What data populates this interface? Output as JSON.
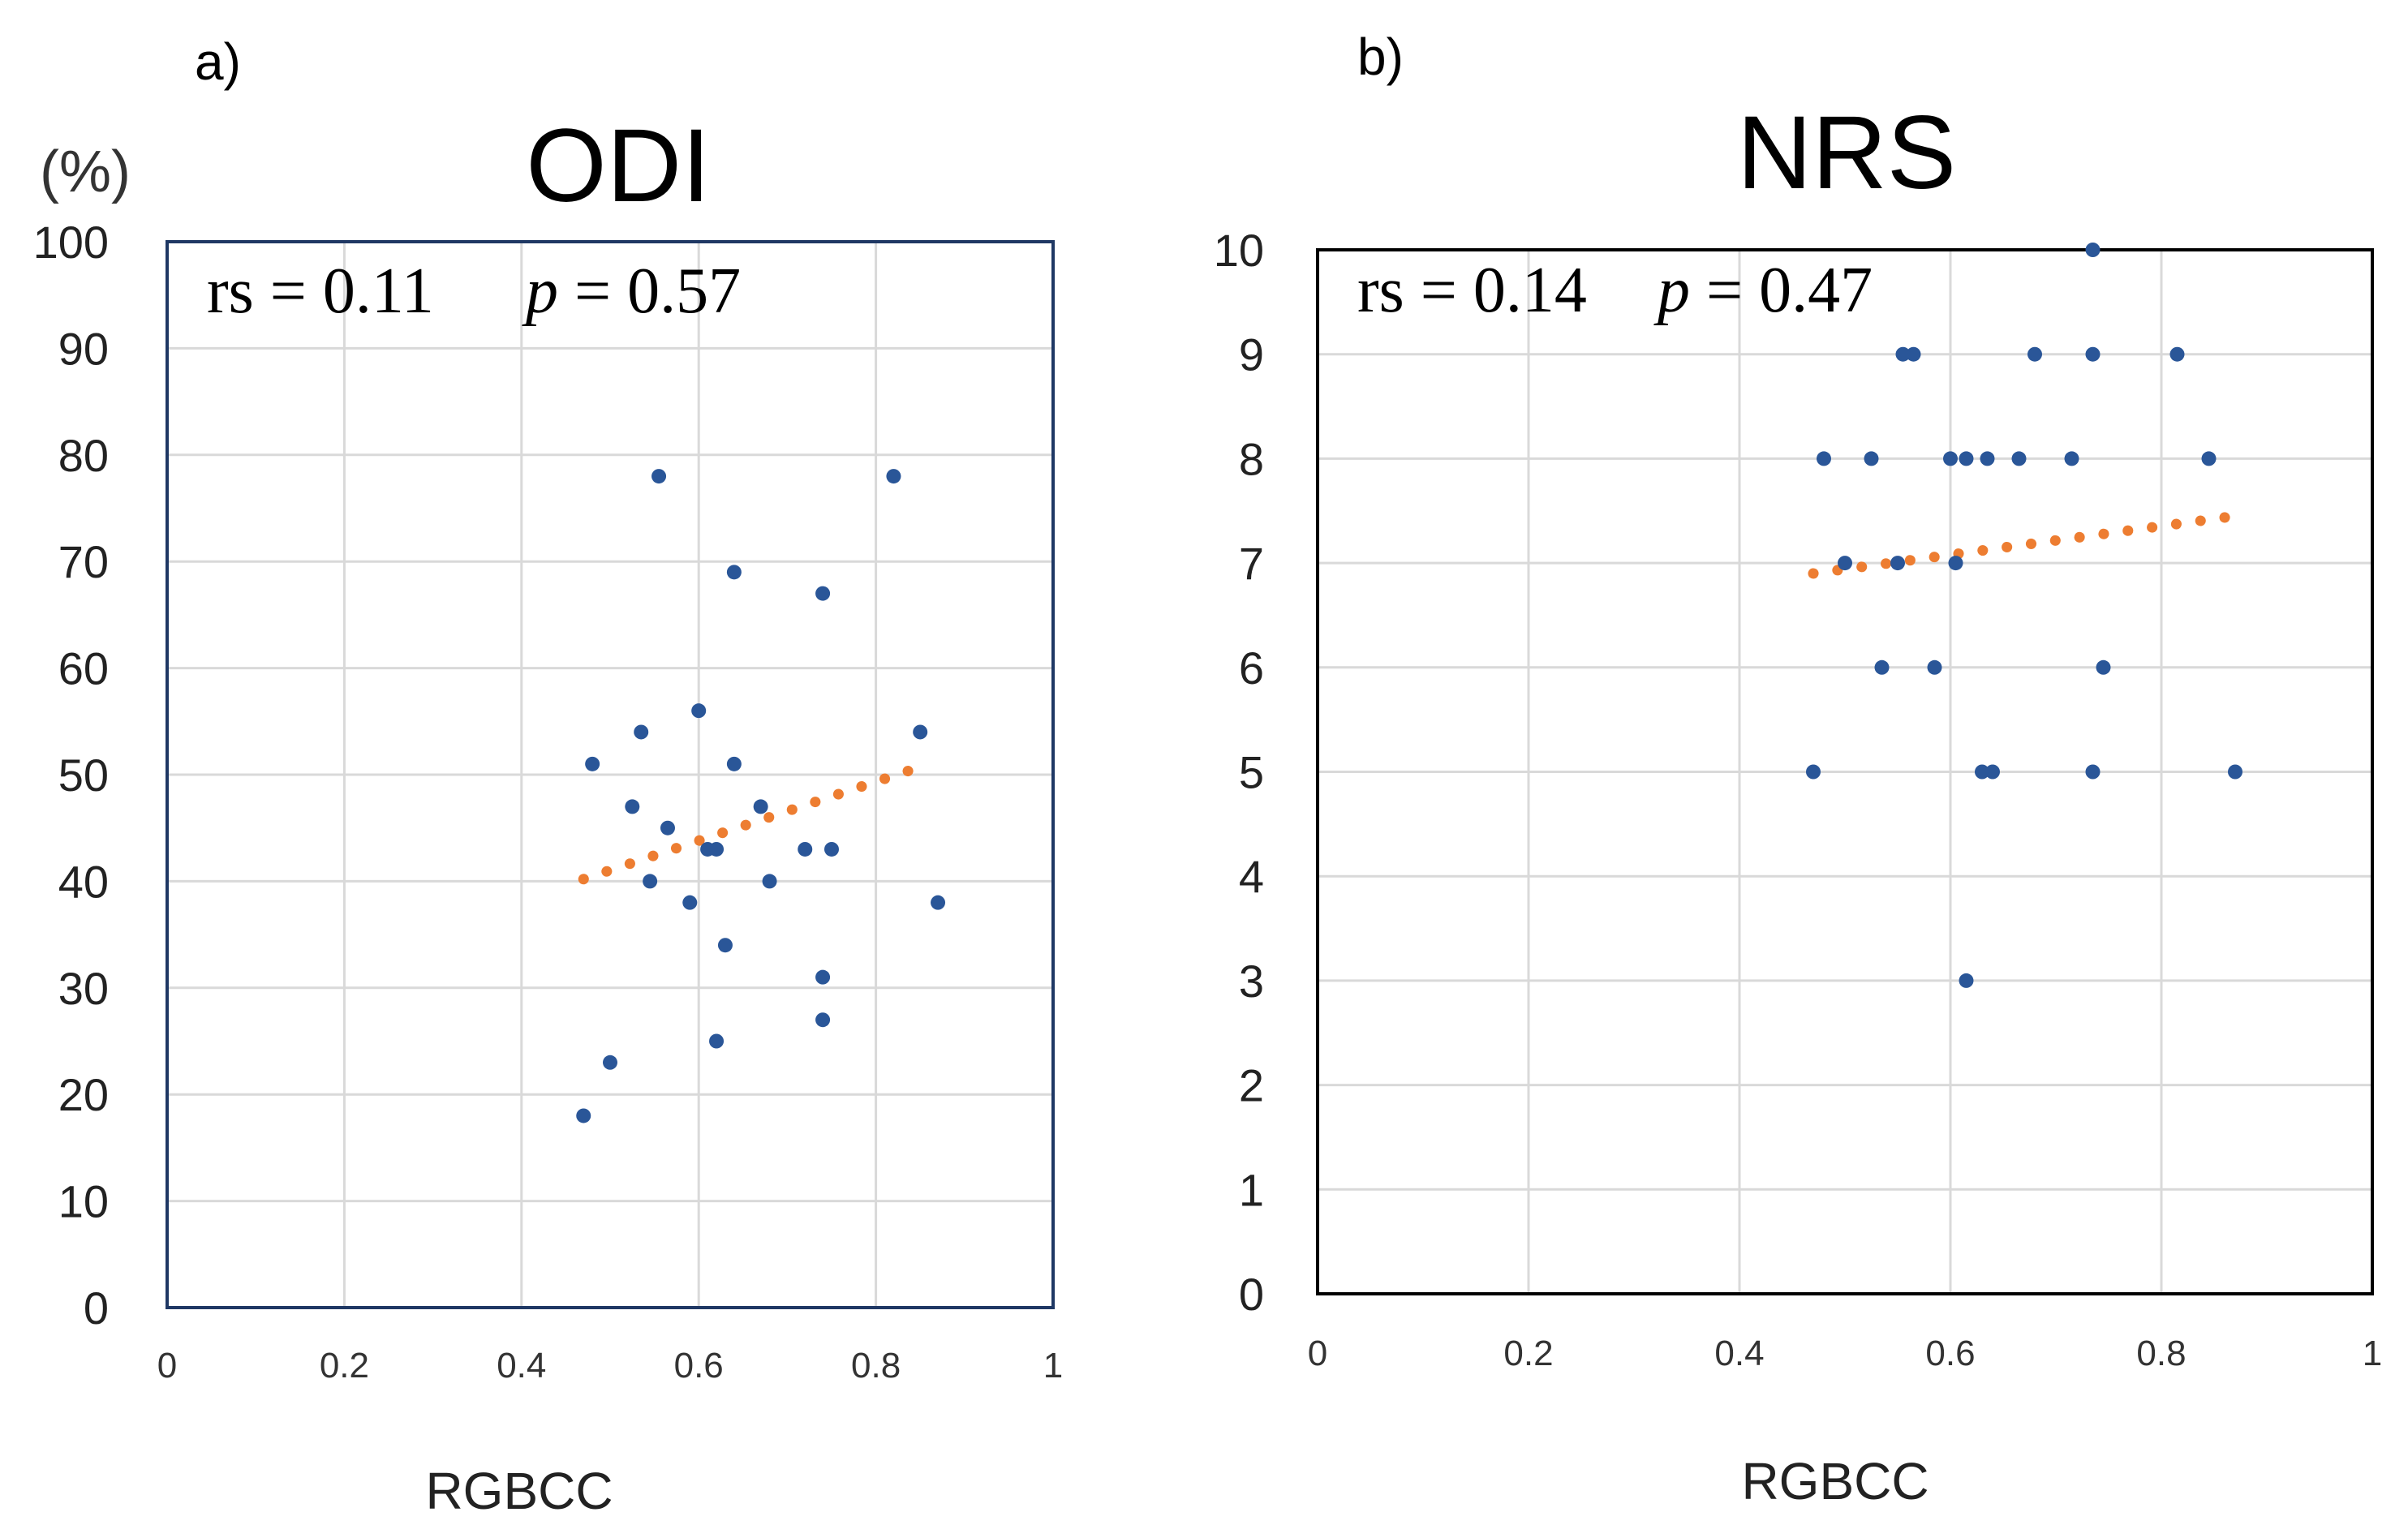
{
  "chart_data": [
    {
      "panel_label": "a)",
      "type": "scatter",
      "title": "ODI",
      "y_unit": "(%)",
      "xlabel": "RGBCC",
      "ylabel": "",
      "xlim": [
        0,
        1
      ],
      "ylim": [
        0,
        100
      ],
      "x_ticks": [
        0,
        0.2,
        0.4,
        0.6,
        0.8,
        1
      ],
      "x_tick_labels": [
        "0",
        "0.2",
        "0.4",
        "0.6",
        "0.8",
        "1"
      ],
      "y_ticks": [
        0,
        10,
        20,
        30,
        40,
        50,
        60,
        70,
        80,
        90,
        100
      ],
      "y_tick_labels": [
        "0",
        "10",
        "20",
        "30",
        "40",
        "50",
        "60",
        "70",
        "80",
        "90",
        "100"
      ],
      "grid": true,
      "stats": {
        "rs_text": "rs = 0.11",
        "p_label": "p",
        "p_value_text": " = 0.57"
      },
      "points_color": "#2a5698",
      "trend_color": "#ed7d31",
      "frame_color": "#1f3864",
      "points": [
        {
          "x": 0.47,
          "y": 18
        },
        {
          "x": 0.48,
          "y": 51
        },
        {
          "x": 0.5,
          "y": 23
        },
        {
          "x": 0.525,
          "y": 47
        },
        {
          "x": 0.535,
          "y": 54
        },
        {
          "x": 0.545,
          "y": 40
        },
        {
          "x": 0.555,
          "y": 78
        },
        {
          "x": 0.565,
          "y": 45
        },
        {
          "x": 0.59,
          "y": 38
        },
        {
          "x": 0.6,
          "y": 56
        },
        {
          "x": 0.61,
          "y": 43
        },
        {
          "x": 0.62,
          "y": 43
        },
        {
          "x": 0.62,
          "y": 25
        },
        {
          "x": 0.63,
          "y": 34
        },
        {
          "x": 0.64,
          "y": 69
        },
        {
          "x": 0.64,
          "y": 51
        },
        {
          "x": 0.67,
          "y": 47
        },
        {
          "x": 0.68,
          "y": 40
        },
        {
          "x": 0.72,
          "y": 43
        },
        {
          "x": 0.74,
          "y": 67
        },
        {
          "x": 0.74,
          "y": 31
        },
        {
          "x": 0.74,
          "y": 27
        },
        {
          "x": 0.75,
          "y": 43
        },
        {
          "x": 0.82,
          "y": 78
        },
        {
          "x": 0.85,
          "y": 54
        },
        {
          "x": 0.87,
          "y": 38
        }
      ],
      "trendline": {
        "x": [
          0.47,
          0.86
        ],
        "y": [
          40.2,
          51
        ]
      }
    },
    {
      "panel_label": "b)",
      "type": "scatter",
      "title": "NRS",
      "y_unit": "",
      "xlabel": "RGBCC",
      "ylabel": "",
      "xlim": [
        0,
        1
      ],
      "ylim": [
        0,
        10
      ],
      "x_ticks": [
        0,
        0.2,
        0.4,
        0.6,
        0.8,
        1
      ],
      "x_tick_labels": [
        "0",
        "0.2",
        "0.4",
        "0.6",
        "0.8",
        "1"
      ],
      "y_ticks": [
        0,
        1,
        2,
        3,
        4,
        5,
        6,
        7,
        8,
        9,
        10
      ],
      "y_tick_labels": [
        "0",
        "1",
        "2",
        "3",
        "4",
        "5",
        "6",
        "7",
        "8",
        "9",
        "10"
      ],
      "grid": true,
      "stats": {
        "rs_text": "rs = 0.14",
        "p_label": "p",
        "p_value_text": " = 0.47"
      },
      "points_color": "#2a5698",
      "trend_color": "#ed7d31",
      "frame_color": "#000000",
      "points": [
        {
          "x": 0.47,
          "y": 5
        },
        {
          "x": 0.48,
          "y": 8
        },
        {
          "x": 0.5,
          "y": 7
        },
        {
          "x": 0.525,
          "y": 8
        },
        {
          "x": 0.535,
          "y": 6
        },
        {
          "x": 0.55,
          "y": 7
        },
        {
          "x": 0.555,
          "y": 9
        },
        {
          "x": 0.565,
          "y": 9
        },
        {
          "x": 0.585,
          "y": 6
        },
        {
          "x": 0.6,
          "y": 8
        },
        {
          "x": 0.605,
          "y": 7
        },
        {
          "x": 0.615,
          "y": 8
        },
        {
          "x": 0.615,
          "y": 3
        },
        {
          "x": 0.63,
          "y": 5
        },
        {
          "x": 0.635,
          "y": 8
        },
        {
          "x": 0.64,
          "y": 5
        },
        {
          "x": 0.665,
          "y": 8
        },
        {
          "x": 0.68,
          "y": 9
        },
        {
          "x": 0.715,
          "y": 8
        },
        {
          "x": 0.735,
          "y": 10
        },
        {
          "x": 0.735,
          "y": 9
        },
        {
          "x": 0.735,
          "y": 5
        },
        {
          "x": 0.745,
          "y": 6
        },
        {
          "x": 0.815,
          "y": 9
        },
        {
          "x": 0.845,
          "y": 8
        },
        {
          "x": 0.87,
          "y": 5
        }
      ],
      "trendline": {
        "x": [
          0.47,
          0.87
        ],
        "y": [
          6.9,
          7.45
        ]
      }
    }
  ]
}
